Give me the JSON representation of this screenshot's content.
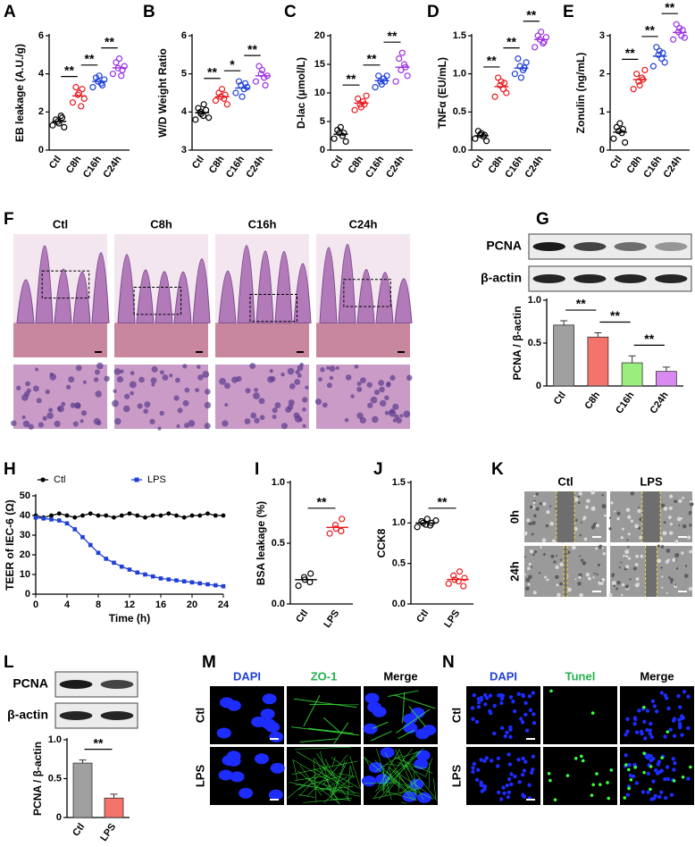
{
  "chart_data": [
    {
      "panel": "A",
      "type": "strip",
      "y_label": "EB leakage  (A.U./g)",
      "categories": [
        "Ctl",
        "C8h",
        "C16h",
        "C24h"
      ],
      "colors": [
        "#000000",
        "#e8191e",
        "#1f3fd6",
        "#9b2fe0"
      ],
      "values": [
        [
          1.3,
          1.5,
          1.6,
          1.8,
          1.4,
          1.2,
          1.7
        ],
        [
          2.5,
          2.9,
          3.3,
          2.3,
          3.0,
          2.7,
          3.2
        ],
        [
          3.3,
          3.6,
          3.8,
          3.5,
          3.9,
          3.7,
          3.4
        ],
        [
          4.0,
          4.3,
          4.6,
          3.9,
          4.8,
          4.4,
          4.2
        ]
      ],
      "ylim": [
        0,
        6
      ],
      "yticks": [
        0,
        2,
        4,
        6
      ],
      "significance": [
        {
          "label": "**",
          "groups": [
            "Ctl",
            "C8h"
          ]
        },
        {
          "label": "**",
          "groups": [
            "C8h",
            "C16h"
          ]
        },
        {
          "label": "**",
          "groups": [
            "C16h",
            "C24h"
          ]
        }
      ]
    },
    {
      "panel": "B",
      "type": "strip",
      "y_label": "W/D Weight Ratio",
      "categories": [
        "Ctl",
        "C8h",
        "C16h",
        "C24h"
      ],
      "colors": [
        "#000000",
        "#e8191e",
        "#1f3fd6",
        "#9b2fe0"
      ],
      "values": [
        [
          3.8,
          4.0,
          4.1,
          3.9,
          3.95,
          4.05,
          4.2,
          3.85
        ],
        [
          4.3,
          4.4,
          4.5,
          4.35,
          4.6,
          4.2,
          4.45
        ],
        [
          4.5,
          4.7,
          4.8,
          4.6,
          4.4,
          4.65,
          4.75
        ],
        [
          4.8,
          5.0,
          5.2,
          4.9,
          5.1,
          4.95,
          4.7
        ]
      ],
      "ylim": [
        3,
        6
      ],
      "yticks": [
        3,
        4,
        5,
        6
      ],
      "significance": [
        {
          "label": "**",
          "groups": [
            "Ctl",
            "C8h"
          ]
        },
        {
          "label": "*",
          "groups": [
            "C8h",
            "C16h"
          ]
        },
        {
          "label": "**",
          "groups": [
            "C16h",
            "C24h"
          ]
        }
      ]
    },
    {
      "panel": "C",
      "type": "strip",
      "y_label": "D-lac (μmol/L)",
      "categories": [
        "Ctl",
        "C8h",
        "C16h",
        "C24h"
      ],
      "colors": [
        "#000000",
        "#e8191e",
        "#1f3fd6",
        "#9b2fe0"
      ],
      "values": [
        [
          2,
          3,
          3.5,
          2.5,
          4,
          1.5,
          3
        ],
        [
          7,
          8,
          9,
          8.5,
          7.5,
          9.5,
          8
        ],
        [
          11,
          12,
          13,
          12.5,
          11.5,
          13,
          12
        ],
        [
          12,
          14,
          16,
          15,
          17,
          13,
          14.5
        ]
      ],
      "ylim": [
        0,
        20
      ],
      "yticks": [
        0,
        5,
        10,
        15,
        20
      ],
      "significance": [
        {
          "label": "**",
          "groups": [
            "Ctl",
            "C8h"
          ]
        },
        {
          "label": "**",
          "groups": [
            "C8h",
            "C16h"
          ]
        },
        {
          "label": "**",
          "groups": [
            "C16h",
            "C24h"
          ]
        }
      ]
    },
    {
      "panel": "D",
      "type": "strip",
      "y_label": "TNFα (EU/mL)",
      "categories": [
        "Ctl",
        "C8h",
        "C16h",
        "C24h"
      ],
      "colors": [
        "#000000",
        "#e8191e",
        "#1f3fd6",
        "#9b2fe0"
      ],
      "values": [
        [
          0.15,
          0.2,
          0.25,
          0.18,
          0.22,
          0.12,
          0.2
        ],
        [
          0.7,
          0.85,
          0.95,
          0.8,
          0.9,
          0.75,
          0.88
        ],
        [
          1.0,
          1.1,
          1.2,
          1.05,
          0.95,
          1.15,
          1.08
        ],
        [
          1.35,
          1.45,
          1.5,
          1.4,
          1.55,
          1.48,
          1.42
        ]
      ],
      "ylim": [
        0,
        1.5
      ],
      "yticks": [
        {
          "value": 0,
          "label": "0.0"
        },
        0.5,
        {
          "value": 1,
          "label": "1.0"
        },
        1.5
      ],
      "significance": [
        {
          "label": "**",
          "groups": [
            "Ctl",
            "C8h"
          ]
        },
        {
          "label": "**",
          "groups": [
            "C8h",
            "C16h"
          ]
        },
        {
          "label": "**",
          "groups": [
            "C16h",
            "C24h"
          ]
        }
      ]
    },
    {
      "panel": "E",
      "type": "strip",
      "y_label": "Zonulin (ng/mL)",
      "categories": [
        "Ctl",
        "C8h",
        "C16h",
        "C24h"
      ],
      "colors": [
        "#000000",
        "#e8191e",
        "#1f3fd6",
        "#9b2fe0"
      ],
      "values": [
        [
          0.3,
          0.5,
          0.6,
          0.45,
          0.7,
          0.2,
          0.55
        ],
        [
          1.6,
          1.8,
          2.0,
          1.9,
          1.7,
          2.1,
          1.85
        ],
        [
          2.2,
          2.5,
          2.7,
          2.4,
          2.6,
          2.3,
          2.55
        ],
        [
          2.9,
          3.1,
          3.3,
          3.0,
          3.2,
          2.95,
          3.15
        ]
      ],
      "ylim": [
        0,
        3
      ],
      "yticks": [
        0,
        1,
        2,
        3
      ],
      "significance": [
        {
          "label": "**",
          "groups": [
            "Ctl",
            "C8h"
          ]
        },
        {
          "label": "**",
          "groups": [
            "C8h",
            "C16h"
          ]
        },
        {
          "label": "**",
          "groups": [
            "C16h",
            "C24h"
          ]
        }
      ]
    },
    {
      "panel": "G",
      "type": "bar",
      "blot_labels": [
        "PCNA",
        "β-actin"
      ],
      "y_label": "PCNA / β-actin",
      "categories": [
        "Ctl",
        "C8h",
        "C16h",
        "C24h"
      ],
      "values": [
        0.71,
        0.57,
        0.27,
        0.17
      ],
      "errors": [
        0.05,
        0.05,
        0.08,
        0.05
      ],
      "colors": [
        "#a0a0a0",
        "#f4736b",
        "#99ee7e",
        "#d88af0"
      ],
      "ylim": [
        0,
        1
      ],
      "yticks": [
        0,
        0.5,
        {
          "value": 1,
          "label": "1.0"
        }
      ],
      "significance": [
        {
          "label": "**",
          "groups": [
            "Ctl",
            "C8h"
          ]
        },
        {
          "label": "**",
          "groups": [
            "C8h",
            "C16h"
          ]
        },
        {
          "label": "**",
          "groups": [
            "C16h",
            "C24h"
          ]
        }
      ]
    },
    {
      "panel": "H",
      "type": "line",
      "x_label": "Time (h)",
      "y_label": "TEER of IEC-6 (Ω)",
      "x": [
        0,
        1,
        2,
        3,
        4,
        5,
        6,
        7,
        8,
        9,
        10,
        11,
        12,
        13,
        14,
        15,
        16,
        17,
        18,
        19,
        20,
        21,
        22,
        23,
        24
      ],
      "series": [
        {
          "name": "Ctl",
          "color": "#000000",
          "values": [
            40,
            39,
            40,
            41,
            40,
            39,
            40,
            41,
            40,
            40,
            39,
            40,
            41,
            40,
            39,
            40,
            40,
            41,
            40,
            39,
            40,
            40,
            41,
            40,
            40
          ]
        },
        {
          "name": "LPS",
          "color": "#1f3fd6",
          "values": [
            39,
            38.5,
            38,
            37.5,
            36,
            33,
            29,
            25,
            21,
            18,
            16,
            14,
            12.5,
            11,
            10,
            9,
            8,
            7.5,
            7,
            6.5,
            6,
            5.5,
            5,
            4.5,
            4
          ]
        }
      ],
      "xlim": [
        0,
        24
      ],
      "xticks": [
        0,
        4,
        8,
        12,
        16,
        20,
        24
      ],
      "ylim": [
        0,
        50
      ],
      "yticks": [
        0,
        10,
        20,
        30,
        40,
        50
      ],
      "legend": "top"
    },
    {
      "panel": "I",
      "type": "strip",
      "y_label": "BSA leakage (%)",
      "categories": [
        "Ctl",
        "LPS"
      ],
      "colors": [
        "#000000",
        "#e8191e"
      ],
      "values": [
        [
          0.15,
          0.2,
          0.22,
          0.25,
          0.18
        ],
        [
          0.58,
          0.62,
          0.65,
          0.7,
          0.6
        ]
      ],
      "ylim": [
        0,
        1
      ],
      "yticks": [
        {
          "value": 0,
          "label": "0.0"
        },
        0.5,
        {
          "value": 1,
          "label": "1.0"
        }
      ],
      "significance": [
        {
          "label": "**",
          "groups": [
            "Ctl",
            "LPS"
          ]
        }
      ]
    },
    {
      "panel": "J",
      "type": "strip",
      "y_label": "CCK8",
      "categories": [
        "Ctl",
        "LPS"
      ],
      "colors": [
        "#000000",
        "#e8191e"
      ],
      "values": [
        [
          0.95,
          1.0,
          1.02,
          1.05,
          0.98,
          1.0,
          0.97,
          1.03
        ],
        [
          0.25,
          0.3,
          0.35,
          0.4,
          0.28,
          0.32,
          0.22
        ]
      ],
      "ylim": [
        0,
        1.5
      ],
      "yticks": [
        {
          "value": 0,
          "label": "0.0"
        },
        0.5,
        {
          "value": 1,
          "label": "1.0"
        },
        1.5
      ],
      "significance": [
        {
          "label": "**",
          "groups": [
            "Ctl",
            "LPS"
          ]
        }
      ]
    },
    {
      "panel": "L",
      "type": "bar",
      "blot_labels": [
        "PCNA",
        "β-actin"
      ],
      "y_label": "PCNA / β-actin",
      "categories": [
        "Ctl",
        "LPS"
      ],
      "values": [
        0.7,
        0.25
      ],
      "errors": [
        0.04,
        0.05
      ],
      "colors": [
        "#a0a0a0",
        "#f4736b"
      ],
      "ylim": [
        0,
        1
      ],
      "yticks": [
        0,
        0.5,
        {
          "value": 1,
          "label": "1.0"
        }
      ],
      "significance": [
        {
          "label": "**",
          "groups": [
            "Ctl",
            "LPS"
          ]
        }
      ]
    }
  ],
  "figures": [
    {
      "panel": "F",
      "style": "he",
      "columns": [
        "Ctl",
        "C8h",
        "C16h",
        "C24h"
      ]
    },
    {
      "panel": "K",
      "style": "scratch",
      "columns": [
        "Ctl",
        "LPS"
      ],
      "rows": [
        "0h",
        "24h"
      ]
    },
    {
      "panel": "M",
      "style": "zo1",
      "columns": [
        "DAPI",
        "ZO-1",
        "Merge"
      ],
      "column_colors": [
        "#1f3fd6",
        "#22b14c",
        "#000000"
      ],
      "rows": [
        "Ctl",
        "LPS"
      ]
    },
    {
      "panel": "N",
      "style": "tunel",
      "columns": [
        "DAPI",
        "Tunel",
        "Merge"
      ],
      "column_colors": [
        "#1f3fd6",
        "#22b14c",
        "#000000"
      ],
      "rows": [
        "Ctl",
        "LPS"
      ]
    }
  ]
}
